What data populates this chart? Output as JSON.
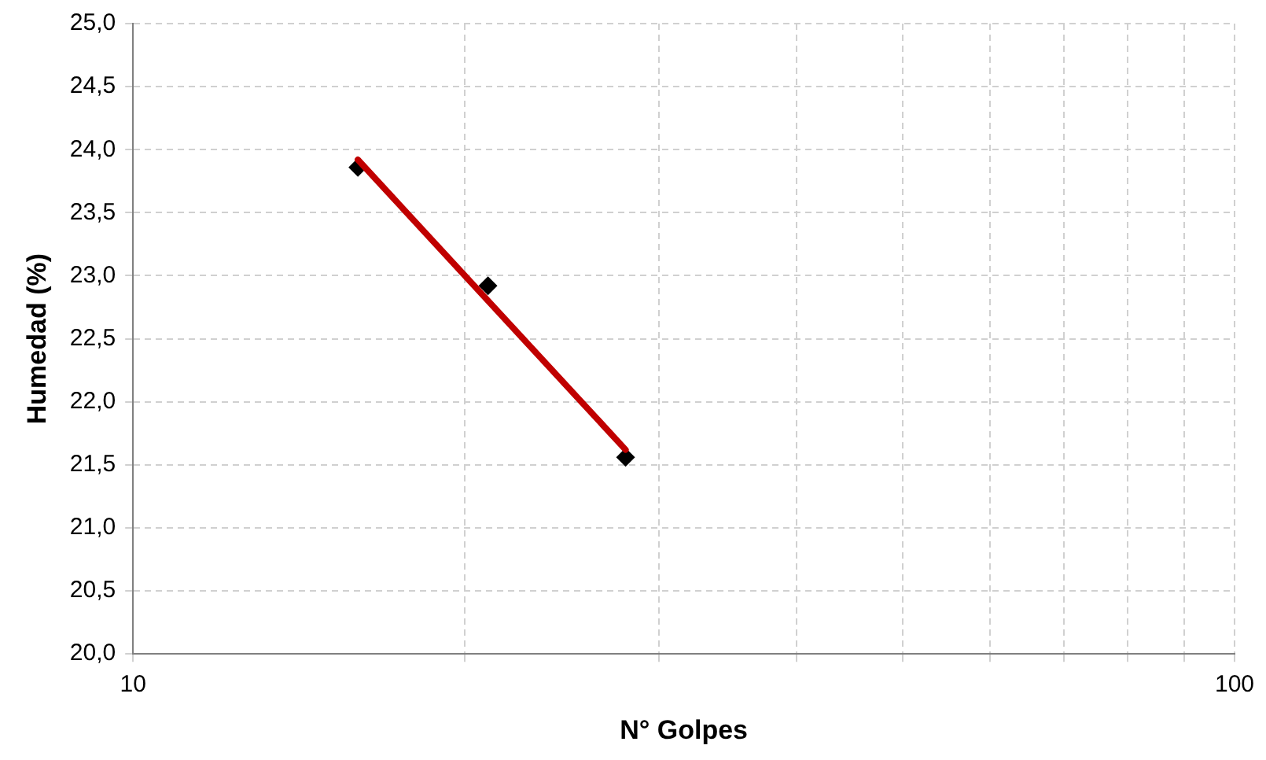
{
  "chart_data": {
    "type": "scatter",
    "xlabel": "N° Golpes",
    "ylabel": "Humedad (%)",
    "log": "x",
    "grid": true,
    "legend": false,
    "xlim": [
      10,
      100
    ],
    "xticks": [
      10,
      {
        "value": 20,
        "label": null
      },
      {
        "value": 30,
        "label": null
      },
      {
        "value": 40,
        "label": null
      },
      {
        "value": 50,
        "label": null
      },
      {
        "value": 60,
        "label": null
      },
      {
        "value": 70,
        "label": null
      },
      {
        "value": 80,
        "label": null
      },
      {
        "value": 90,
        "label": null
      },
      100
    ],
    "ylim": [
      20,
      25
    ],
    "yticks": [
      {
        "value": 20,
        "label": "20,0"
      },
      {
        "value": 20.5,
        "label": "20,5"
      },
      {
        "value": 21,
        "label": "21,0"
      },
      {
        "value": 21.5,
        "label": "21,5"
      },
      {
        "value": 22,
        "label": "22,0"
      },
      {
        "value": 22.5,
        "label": "22,5"
      },
      {
        "value": 23,
        "label": "23,0"
      },
      {
        "value": 23.5,
        "label": "23,5"
      },
      {
        "value": 24,
        "label": "24,0"
      },
      {
        "value": 24.5,
        "label": "24,5"
      },
      {
        "value": 25,
        "label": "25,0"
      }
    ],
    "series": [
      {
        "color": "#000000",
        "marker": "diamond",
        "x": [
          16,
          21,
          28
        ],
        "values": [
          23.86,
          22.92,
          21.56
        ]
      },
      {
        "type": "line",
        "color": "#c00000",
        "marker": "none",
        "line_style": "solid",
        "x": [
          16,
          28
        ],
        "values": [
          23.92,
          21.62
        ]
      }
    ]
  }
}
